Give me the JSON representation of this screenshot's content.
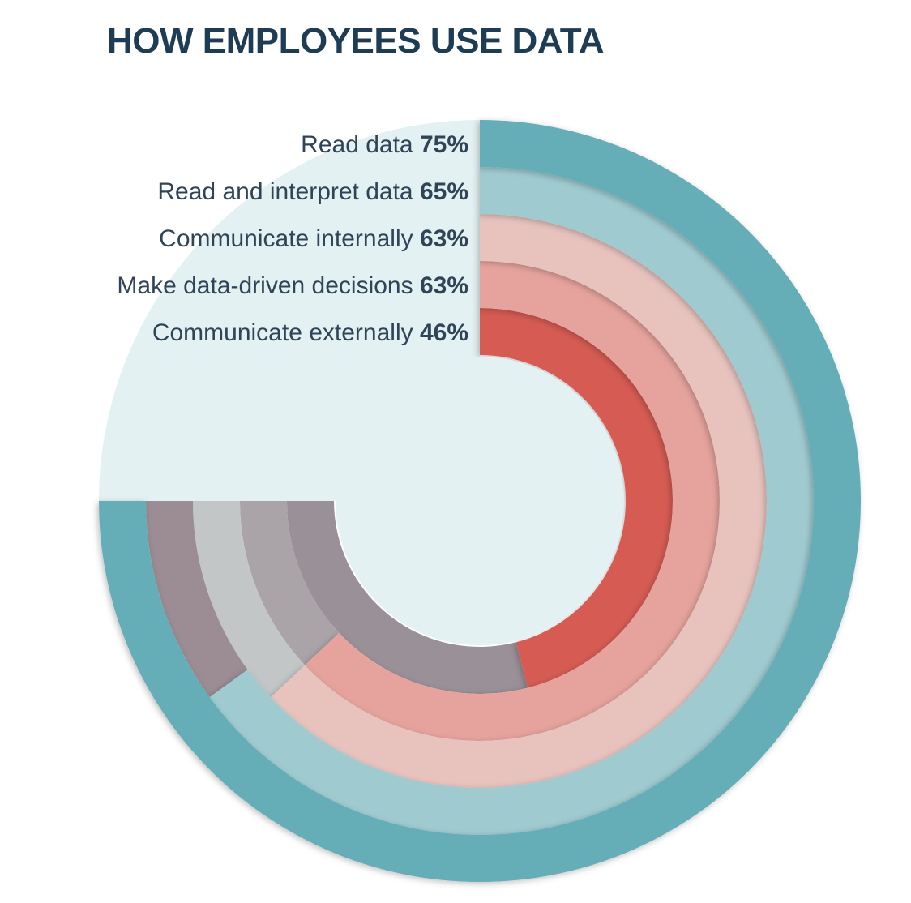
{
  "chart_data": {
    "type": "radial-bar",
    "title": "HOW EMPLOYEES USE DATA",
    "unit": "%",
    "series": [
      {
        "label": "Read data",
        "value": 75,
        "value_label": "75%",
        "color": "#65adb7",
        "remainder_color": "#65adb7"
      },
      {
        "label": "Read and interpret data",
        "value": 65,
        "value_label": "65%",
        "color": "#9fcbd0",
        "remainder_color": "#9c8c93"
      },
      {
        "label": "Communicate internally",
        "value": 63,
        "value_label": "63%",
        "color": "#e8c3be",
        "remainder_color": "#c3c6c7"
      },
      {
        "label": "Make data-driven decisions",
        "value": 63,
        "value_label": "63%",
        "color": "#e6a39d",
        "remainder_color": "#aaa3a8"
      },
      {
        "label": "Communicate externally",
        "value": 46,
        "value_label": "46%",
        "color": "#d65b53",
        "remainder_color": "#9a9097"
      }
    ],
    "background_color": "#e3f1f2"
  }
}
